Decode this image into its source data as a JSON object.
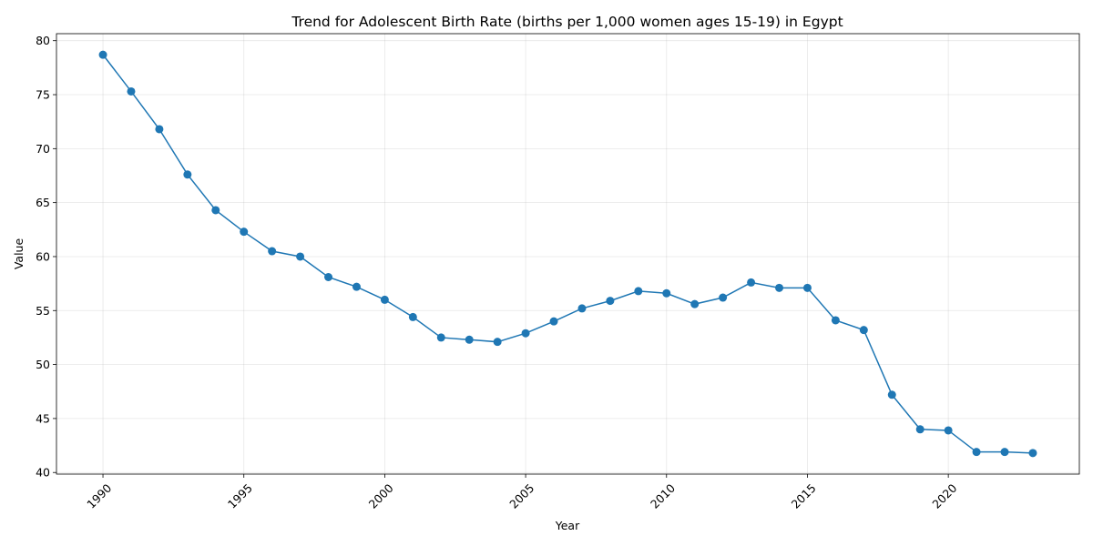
{
  "chart_data": {
    "type": "line",
    "title": "Trend for Adolescent Birth Rate (births per 1,000 women ages 15-19) in Egypt",
    "xlabel": "Year",
    "ylabel": "Value",
    "x": [
      1990,
      1991,
      1992,
      1993,
      1994,
      1995,
      1996,
      1997,
      1998,
      1999,
      2000,
      2001,
      2002,
      2003,
      2004,
      2005,
      2006,
      2007,
      2008,
      2009,
      2010,
      2011,
      2012,
      2013,
      2014,
      2015,
      2016,
      2017,
      2018,
      2019,
      2020,
      2021,
      2022,
      2023
    ],
    "series": [
      {
        "values": [
          78.7,
          75.3,
          71.8,
          67.6,
          64.3,
          62.3,
          60.5,
          60.0,
          58.1,
          57.2,
          56.0,
          54.4,
          52.5,
          52.3,
          52.1,
          52.9,
          54.0,
          55.2,
          55.9,
          56.8,
          56.6,
          55.6,
          56.2,
          57.6,
          57.1,
          57.1,
          54.1,
          53.2,
          47.2,
          44.0,
          43.9,
          41.9,
          41.9,
          41.8
        ],
        "color": "#1f77b4",
        "marker": "circle"
      }
    ],
    "xticks": [
      1990,
      1995,
      2000,
      2005,
      2010,
      2015,
      2020
    ],
    "yticks": [
      40,
      45,
      50,
      55,
      60,
      65,
      70,
      75,
      80
    ],
    "xlim": [
      1988.35,
      2024.65
    ],
    "ylim": [
      39.85,
      80.65
    ],
    "grid": true,
    "xtick_rotation": -45
  }
}
